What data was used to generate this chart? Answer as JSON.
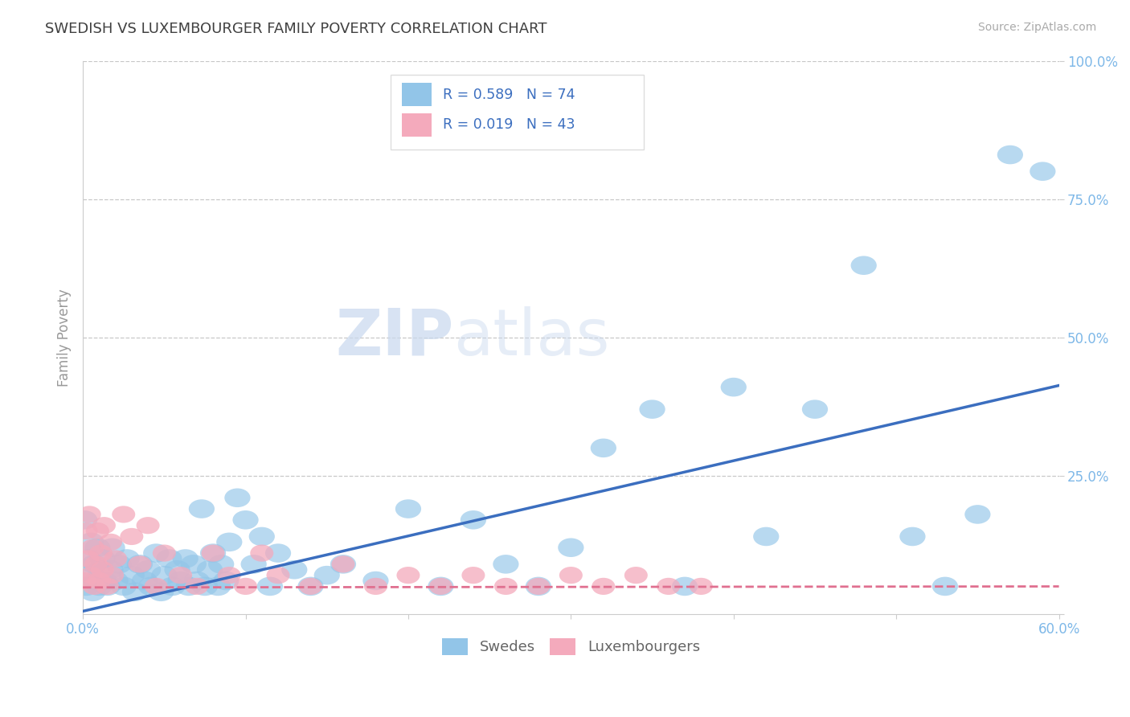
{
  "title": "SWEDISH VS LUXEMBOURGER FAMILY POVERTY CORRELATION CHART",
  "source_text": "Source: ZipAtlas.com",
  "ylabel": "Family Poverty",
  "xlim": [
    0.0,
    0.6
  ],
  "ylim": [
    0.0,
    1.0
  ],
  "xticks": [
    0.0,
    0.1,
    0.2,
    0.3,
    0.4,
    0.5,
    0.6
  ],
  "xticklabels": [
    "0.0%",
    "",
    "",
    "",
    "",
    "",
    "60.0%"
  ],
  "yticks": [
    0.0,
    0.25,
    0.5,
    0.75,
    1.0
  ],
  "yticklabels": [
    "",
    "25.0%",
    "50.0%",
    "75.0%",
    "100.0%"
  ],
  "blue_R": 0.589,
  "blue_N": 74,
  "pink_R": 0.019,
  "pink_N": 43,
  "blue_color": "#92C5E8",
  "pink_color": "#F4AABC",
  "blue_line_color": "#3B6EBF",
  "pink_line_color": "#E07090",
  "watermark_zip": "ZIP",
  "watermark_atlas": "atlas",
  "background_color": "#FFFFFF",
  "grid_color": "#C8C8C8",
  "title_color": "#404040",
  "tick_color": "#7EB8E8",
  "blue_slope": 0.68,
  "blue_intercept": 0.005,
  "pink_slope": 0.003,
  "pink_intercept": 0.048,
  "blue_points_x": [
    0.001,
    0.002,
    0.003,
    0.004,
    0.005,
    0.006,
    0.007,
    0.008,
    0.009,
    0.01,
    0.011,
    0.012,
    0.013,
    0.015,
    0.017,
    0.018,
    0.02,
    0.022,
    0.025,
    0.027,
    0.03,
    0.032,
    0.035,
    0.038,
    0.04,
    0.042,
    0.045,
    0.048,
    0.05,
    0.053,
    0.055,
    0.058,
    0.06,
    0.063,
    0.065,
    0.068,
    0.07,
    0.073,
    0.075,
    0.078,
    0.08,
    0.083,
    0.085,
    0.088,
    0.09,
    0.095,
    0.1,
    0.105,
    0.11,
    0.115,
    0.12,
    0.13,
    0.14,
    0.15,
    0.16,
    0.18,
    0.2,
    0.22,
    0.24,
    0.26,
    0.28,
    0.3,
    0.32,
    0.35,
    0.37,
    0.4,
    0.42,
    0.45,
    0.48,
    0.51,
    0.53,
    0.55,
    0.57,
    0.59
  ],
  "blue_points_y": [
    0.17,
    0.05,
    0.1,
    0.07,
    0.13,
    0.04,
    0.09,
    0.06,
    0.12,
    0.05,
    0.08,
    0.1,
    0.06,
    0.05,
    0.08,
    0.12,
    0.06,
    0.09,
    0.05,
    0.1,
    0.07,
    0.04,
    0.09,
    0.06,
    0.08,
    0.05,
    0.11,
    0.04,
    0.07,
    0.1,
    0.05,
    0.08,
    0.06,
    0.1,
    0.05,
    0.09,
    0.06,
    0.19,
    0.05,
    0.08,
    0.11,
    0.05,
    0.09,
    0.06,
    0.13,
    0.21,
    0.17,
    0.09,
    0.14,
    0.05,
    0.11,
    0.08,
    0.05,
    0.07,
    0.09,
    0.06,
    0.19,
    0.05,
    0.17,
    0.09,
    0.05,
    0.12,
    0.3,
    0.37,
    0.05,
    0.41,
    0.14,
    0.37,
    0.63,
    0.14,
    0.05,
    0.18,
    0.83,
    0.8
  ],
  "pink_points_x": [
    0.001,
    0.002,
    0.003,
    0.004,
    0.005,
    0.006,
    0.007,
    0.008,
    0.009,
    0.01,
    0.011,
    0.012,
    0.013,
    0.015,
    0.017,
    0.018,
    0.02,
    0.025,
    0.03,
    0.035,
    0.04,
    0.045,
    0.05,
    0.06,
    0.07,
    0.08,
    0.09,
    0.1,
    0.11,
    0.12,
    0.14,
    0.16,
    0.18,
    0.2,
    0.22,
    0.24,
    0.26,
    0.28,
    0.3,
    0.32,
    0.34,
    0.36,
    0.38
  ],
  "pink_points_y": [
    0.06,
    0.15,
    0.1,
    0.18,
    0.07,
    0.12,
    0.05,
    0.09,
    0.15,
    0.06,
    0.11,
    0.08,
    0.16,
    0.05,
    0.13,
    0.07,
    0.1,
    0.18,
    0.14,
    0.09,
    0.16,
    0.05,
    0.11,
    0.07,
    0.05,
    0.11,
    0.07,
    0.05,
    0.11,
    0.07,
    0.05,
    0.09,
    0.05,
    0.07,
    0.05,
    0.07,
    0.05,
    0.05,
    0.07,
    0.05,
    0.07,
    0.05,
    0.05
  ]
}
